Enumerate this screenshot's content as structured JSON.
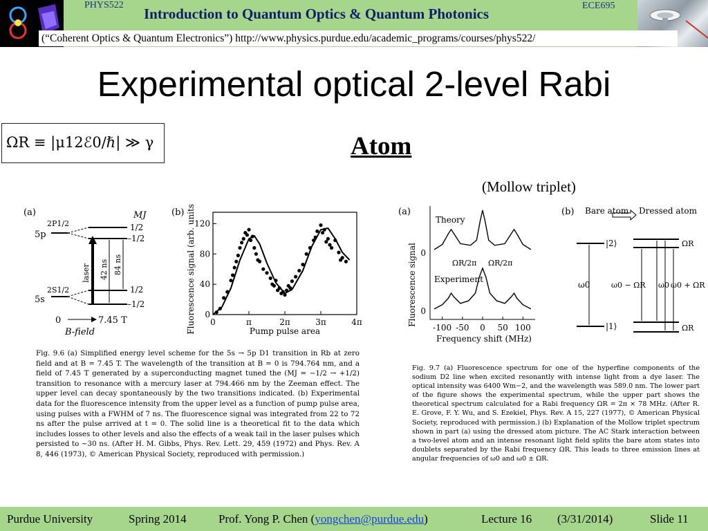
{
  "header": {
    "course_left": "PHYS522",
    "course_right": "ECE695",
    "title": "Introduction to Quantum Optics & Quantum Photonics",
    "subtitle": "(“Coherent Optics & Quantum Electronics”) http://www.physics.purdue.edu/academic_programs/courses/phys522/"
  },
  "slide": {
    "title": "Experimental optical 2-level Rabi",
    "equation": "ΩR ≡ |μ12ℰ0/ℏ| ≫ γ",
    "atom_heading": "Atom",
    "mollow_label": "(Mollow triplet)"
  },
  "fig96": {
    "a_label": "(a)",
    "b_label": "(b)",
    "mj_label": "MJ",
    "level_5p": "5p",
    "level_5s": "5s",
    "state_p": "2P1/2",
    "state_s": "2S1/2",
    "mj_p_plus": "1/2",
    "mj_p_minus": "–1/2",
    "mj_s_plus": "1/2",
    "mj_s_minus": "–1/2",
    "laser": "laser",
    "ns42": "42 ns",
    "ns84": "84 ns",
    "bfield_zero": "0",
    "bfield_val": "7.45 T",
    "bfield_label": "B-field",
    "caption": "Fig. 9.6 (a) Simplified energy level scheme for the 5s → 5p D1 transition in Rb at zero field and at B = 7.45 T. The wavelength of the transition at B = 0 is 794.764 nm, and a field of 7.45 T generated by a superconducting magnet tuned the (MJ = −1/2 → +1/2) transition to resonance with a mercury laser at 794.466 nm by the Zeeman effect. The upper level can decay spontaneously by the two transitions indicated. (b) Experimental data for the fluorescence intensity from the upper level as a function of pump pulse area, using pulses with a FWHM of 7 ns. The fluorescence signal was integrated from 22 to 72 ns after the pulse arrived at t = 0. The solid line is a theoretical fit to the data which includes losses to other levels and also the effects of a weak tail in the laser pulses which persisted to ~30 ns. (After H. M. Gibbs, Phys. Rev. Lett. 29, 459 (1972) and Phys. Rev. A 8, 446 (1973), © American Physical Society, reproduced with permission.)"
  },
  "fig97": {
    "a_label": "(a)",
    "b_label": "(b)",
    "theory": "Theory",
    "experiment": "Experiment",
    "bare_atom": "Bare atom",
    "dressed_atom": "Dressed atom",
    "omega_half_left": "ΩR/2π",
    "omega_half_right": "ΩR/2π",
    "ket2": "|2⟩",
    "ket1": "|1⟩",
    "omega_r_top": "ΩR",
    "omega_r_bottom": "ΩR",
    "w0": "ω0",
    "w0_minus": "ω0 − ΩR",
    "w0_mid": "ω0",
    "w0_plus": "ω0 + ΩR",
    "caption": "Fig. 9.7 (a) Fluorescence spectrum for one of the hyperfine components of the sodium D2 line when excited resonantly with intense light from a dye laser. The optical intensity was 6400 Wm−2, and the wavelength was 589.0 nm. The lower part of the figure shows the experimental spectrum, while the upper part shows the theoretical spectrum calculated for a Rabi frequency ΩR = 2π × 78 MHz. (After R. E. Grove, F. Y. Wu, and S. Ezekiel, Phys. Rev. A 15, 227 (1977), © American Physical Society, reproduced with permission.) (b) Explanation of the Mollow triplet spectrum shown in part (a) using the dressed atom picture. The AC Stark interaction between a two-level atom and an intense resonant light field splits the bare atom states into doublets separated by the Rabi frequency ΩR. This leads to three emission lines at angular frequencies of ω0 and ω0 ± ΩR."
  },
  "chart_data": [
    {
      "type": "scatter",
      "title": "",
      "xlabel": "Pump pulse area",
      "ylabel": "Fluorescence signal (arb. units)",
      "xlim": [
        0,
        4.0
      ],
      "ylim": [
        0,
        135
      ],
      "x_unit": "π",
      "x_tick_labels": [
        "0",
        "π",
        "2π",
        "3π",
        "4π"
      ],
      "x_ticks": [
        0,
        1,
        2,
        3,
        4
      ],
      "y_ticks": [
        0,
        40,
        80,
        120
      ],
      "points": [
        [
          0.1,
          3
        ],
        [
          0.2,
          8
        ],
        [
          0.3,
          22
        ],
        [
          0.4,
          30
        ],
        [
          0.5,
          45
        ],
        [
          0.55,
          52
        ],
        [
          0.6,
          62
        ],
        [
          0.65,
          70
        ],
        [
          0.7,
          78
        ],
        [
          0.75,
          88
        ],
        [
          0.8,
          95
        ],
        [
          0.85,
          100
        ],
        [
          0.9,
          108
        ],
        [
          0.95,
          105
        ],
        [
          1.0,
          112
        ],
        [
          1.05,
          98
        ],
        [
          1.1,
          103
        ],
        [
          1.15,
          88
        ],
        [
          1.2,
          80
        ],
        [
          1.25,
          72
        ],
        [
          1.3,
          70
        ],
        [
          1.4,
          60
        ],
        [
          1.5,
          55
        ],
        [
          1.6,
          48
        ],
        [
          1.65,
          40
        ],
        [
          1.7,
          38
        ],
        [
          1.75,
          45
        ],
        [
          1.8,
          32
        ],
        [
          1.85,
          35
        ],
        [
          1.9,
          28
        ],
        [
          1.95,
          30
        ],
        [
          2.0,
          26
        ],
        [
          2.05,
          32
        ],
        [
          2.1,
          38
        ],
        [
          2.15,
          35
        ],
        [
          2.2,
          44
        ],
        [
          2.3,
          50
        ],
        [
          2.4,
          58
        ],
        [
          2.5,
          66
        ],
        [
          2.6,
          80
        ],
        [
          2.7,
          88
        ],
        [
          2.8,
          98
        ],
        [
          2.85,
          102
        ],
        [
          2.9,
          110
        ],
        [
          3.0,
          118
        ],
        [
          3.05,
          108
        ],
        [
          3.1,
          112
        ],
        [
          3.15,
          96
        ],
        [
          3.2,
          100
        ],
        [
          3.25,
          92
        ],
        [
          3.3,
          88
        ],
        [
          3.4,
          98
        ],
        [
          3.5,
          82
        ],
        [
          3.55,
          72
        ],
        [
          3.6,
          75
        ],
        [
          3.7,
          70
        ]
      ],
      "fit_curve": [
        [
          0,
          0
        ],
        [
          0.25,
          10
        ],
        [
          0.5,
          35
        ],
        [
          0.75,
          72
        ],
        [
          1.0,
          100
        ],
        [
          1.15,
          104
        ],
        [
          1.3,
          93
        ],
        [
          1.5,
          68
        ],
        [
          1.75,
          42
        ],
        [
          2.0,
          28
        ],
        [
          2.2,
          33
        ],
        [
          2.5,
          58
        ],
        [
          2.75,
          90
        ],
        [
          3.0,
          112
        ],
        [
          3.2,
          114
        ],
        [
          3.4,
          100
        ],
        [
          3.6,
          82
        ],
        [
          3.8,
          72
        ]
      ]
    },
    {
      "type": "line",
      "title": "",
      "xlabel": "Frequency shift (MHz)",
      "ylabel": "Fluorescence signal",
      "xlim": [
        -120,
        120
      ],
      "x_ticks": [
        -100,
        -50,
        0,
        50,
        100
      ],
      "y_tick_labels": [
        "0",
        "0"
      ],
      "series": [
        {
          "name": "Theory",
          "x": [
            -120,
            -100,
            -85,
            -78,
            -71,
            -55,
            -30,
            -15,
            -6,
            0,
            6,
            15,
            30,
            55,
            71,
            78,
            85,
            100,
            120
          ],
          "y": [
            0.08,
            0.2,
            0.45,
            0.55,
            0.45,
            0.22,
            0.18,
            0.3,
            0.75,
            1.0,
            0.75,
            0.3,
            0.18,
            0.22,
            0.45,
            0.55,
            0.45,
            0.2,
            0.08
          ]
        },
        {
          "name": "Experiment",
          "x": [
            -120,
            -100,
            -85,
            -78,
            -71,
            -55,
            -35,
            -18,
            -8,
            0,
            8,
            18,
            35,
            55,
            71,
            78,
            85,
            100,
            120
          ],
          "y": [
            0.05,
            0.15,
            0.3,
            0.42,
            0.33,
            0.18,
            0.24,
            0.42,
            0.8,
            1.0,
            0.8,
            0.42,
            0.24,
            0.18,
            0.33,
            0.42,
            0.3,
            0.15,
            0.05
          ]
        }
      ]
    }
  ],
  "footer": {
    "university": "Purdue University",
    "term": "Spring 2014",
    "prof_prefix": "Prof. Yong P. Chen (",
    "email": "yongchen@purdue.edu",
    "prof_suffix": ")",
    "lecture": "Lecture 16",
    "date": "(3/31/2014)",
    "slide": "Slide 11"
  },
  "colors": {
    "header_green": "#a6d68b",
    "title_navy": "#101e6a",
    "link_blue": "#1a3fd8"
  }
}
